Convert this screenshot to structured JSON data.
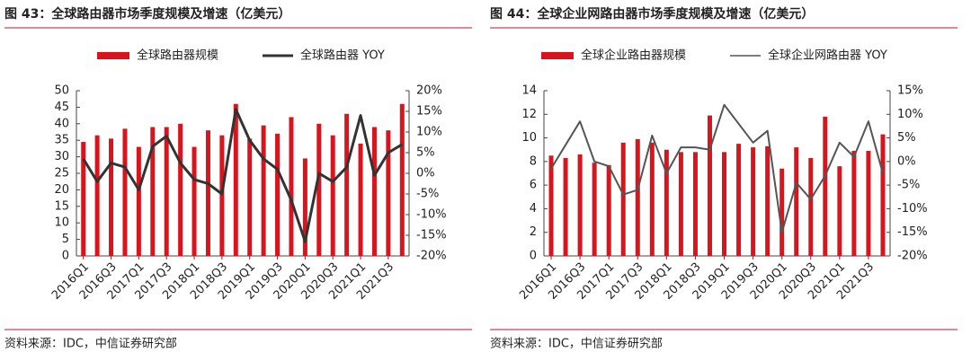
{
  "chart_data": [
    {
      "type": "combo",
      "title": "图 43：全球路由器市场季度规模及增速（亿美元）",
      "source": "资料来源：IDC，中信证券研究部",
      "categories": [
        "2016Q1",
        null,
        "2016Q3",
        null,
        "2017Q1",
        null,
        "2017Q3",
        null,
        "2018Q1",
        null,
        "2018Q3",
        null,
        "2019Q1",
        null,
        "2019Q3",
        null,
        "2020Q1",
        null,
        "2020Q3",
        null,
        "2021Q1",
        null,
        "2021Q3",
        null
      ],
      "series": [
        {
          "name": "全球路由器规模",
          "type": "bar",
          "color": "#d9141c",
          "values": [
            34.5,
            36.5,
            35.5,
            38.5,
            33,
            39,
            39,
            40,
            33,
            38,
            36.5,
            46,
            35.5,
            39.5,
            37,
            42,
            29.5,
            40,
            36.5,
            43,
            34,
            39,
            38,
            46
          ]
        },
        {
          "name": "全球路由器 YOY",
          "type": "line",
          "axis": "y2",
          "color": "#333333",
          "values": [
            3.5,
            -2,
            2.5,
            1.5,
            -4,
            6.5,
            9,
            2.5,
            -1.5,
            -2.5,
            -5,
            15.5,
            8,
            3.5,
            1,
            -6.5,
            -16.5,
            0,
            -2,
            1.5,
            14,
            -0.5,
            5,
            7
          ]
        }
      ],
      "ylim": [
        0,
        50
      ],
      "yticks": [
        0,
        5,
        10,
        15,
        20,
        25,
        30,
        35,
        40,
        45,
        50
      ],
      "y2lim": [
        -20,
        20
      ],
      "y2ticks": [
        {
          "value": -20,
          "label": "-20%"
        },
        {
          "value": -15,
          "label": "-15%"
        },
        {
          "value": -10,
          "label": "-10%"
        },
        {
          "value": -5,
          "label": "-5%"
        },
        {
          "value": 0,
          "label": "0%"
        },
        {
          "value": 5,
          "label": "5%"
        },
        {
          "value": 10,
          "label": "10%"
        },
        {
          "value": 15,
          "label": "15%"
        },
        {
          "value": 20,
          "label": "20%"
        }
      ]
    },
    {
      "type": "combo",
      "title": "图 44：全球企业网路由器市场季度规模及增速（亿美元）",
      "source": "资料来源：IDC，中信证券研究部",
      "categories": [
        "2016Q1",
        null,
        "2016Q3",
        null,
        "2017Q1",
        null,
        "2017Q3",
        null,
        "2018Q1",
        null,
        "2018Q3",
        null,
        "2019Q1",
        null,
        "2019Q3",
        null,
        "2020Q1",
        null,
        "2020Q3",
        null,
        "2021Q1",
        null,
        "2021Q3",
        null
      ],
      "series": [
        {
          "name": "全球企业路由器规模",
          "type": "bar",
          "color": "#d9141c",
          "values": [
            8.5,
            8.3,
            8.6,
            7.9,
            7.7,
            9.6,
            9.9,
            9.6,
            9.0,
            8.8,
            8.8,
            11.9,
            8.8,
            9.5,
            9.2,
            9.3,
            7.4,
            9.2,
            8.3,
            11.8,
            7.6,
            8.9,
            8.9,
            10.3
          ]
        },
        {
          "name": "全球企业网路由器 YOY",
          "type": "line",
          "axis": "y2",
          "color": "#555555",
          "values": [
            -1.5,
            3.5,
            8.5,
            0,
            -1,
            -7,
            -6,
            5.5,
            -2.5,
            3,
            3,
            2.5,
            12,
            8,
            4,
            6.5,
            -15,
            -4.5,
            -8,
            -3,
            4,
            1,
            8.5,
            -2.5
          ]
        }
      ],
      "ylim": [
        0,
        14
      ],
      "yticks": [
        0,
        2,
        4,
        6,
        8,
        10,
        12,
        14
      ],
      "y2lim": [
        -20,
        15
      ],
      "y2ticks": [
        {
          "value": -20,
          "label": "-20%"
        },
        {
          "value": -15,
          "label": "-15%"
        },
        {
          "value": -10,
          "label": "-10%"
        },
        {
          "value": -5,
          "label": "-5%"
        },
        {
          "value": 0,
          "label": "0%"
        },
        {
          "value": 5,
          "label": "5%"
        },
        {
          "value": 10,
          "label": "10%"
        },
        {
          "value": 15,
          "label": "15%"
        }
      ]
    }
  ]
}
